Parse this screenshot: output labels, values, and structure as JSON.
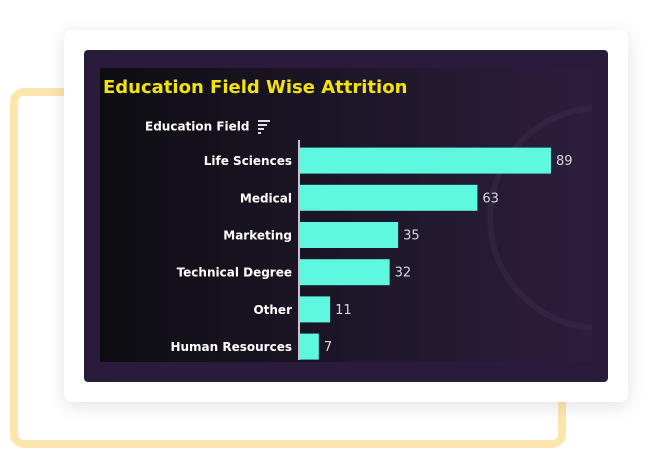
{
  "chart_data": {
    "type": "bar",
    "orientation": "horizontal",
    "title": "Education Field Wise Attrition",
    "y_label": "Education Field",
    "categories": [
      "Life Sciences",
      "Medical",
      "Marketing",
      "Technical Degree",
      "Other",
      "Human Resources"
    ],
    "values": [
      89,
      63,
      35,
      32,
      11,
      7
    ],
    "color": "#5ef8e0"
  }
}
